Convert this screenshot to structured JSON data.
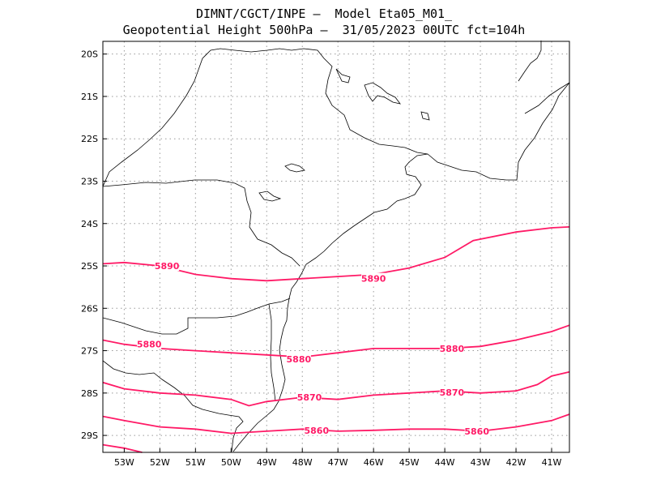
{
  "header": {
    "line1": "DIMNT/CGCT/INPE –  Model Eta05_M01_",
    "line2": "Geopotential Height 500hPa –  31/05/2023 00UTC fct=104h"
  },
  "colors": {
    "contour": "#ff1a66",
    "coast": "#000000",
    "grid": "#999999"
  },
  "map_data": {
    "type": "contour",
    "variable": "Geopotential Height 500hPa",
    "lon_range": [
      -53.6,
      -40.5
    ],
    "lat_range": [
      -29.4,
      -19.7
    ],
    "x_ticks": [
      "53W",
      "52W",
      "51W",
      "50W",
      "49W",
      "48W",
      "47W",
      "46W",
      "45W",
      "44W",
      "43W",
      "42W",
      "41W"
    ],
    "y_ticks": [
      "20S",
      "21S",
      "22S",
      "23S",
      "24S",
      "25S",
      "26S",
      "27S",
      "28S",
      "29S"
    ],
    "contours": [
      {
        "level": "5890",
        "points": [
          [
            -53.6,
            -24.95
          ],
          [
            -53,
            -24.92
          ],
          [
            -52,
            -25.0
          ],
          [
            -51,
            -25.2
          ],
          [
            -50,
            -25.3
          ],
          [
            -49,
            -25.35
          ],
          [
            -48,
            -25.3
          ],
          [
            -47,
            -25.25
          ],
          [
            -46,
            -25.2
          ],
          [
            -45,
            -25.05
          ],
          [
            -44,
            -24.8
          ],
          [
            -43.2,
            -24.4
          ],
          [
            -42,
            -24.2
          ],
          [
            -41,
            -24.1
          ],
          [
            -40.5,
            -24.08
          ]
        ],
        "labels": [
          [
            -51.8,
            -25.0
          ],
          [
            -46,
            -25.3
          ]
        ]
      },
      {
        "level": "5880",
        "points": [
          [
            -53.6,
            -26.75
          ],
          [
            -53,
            -26.85
          ],
          [
            -52,
            -26.95
          ],
          [
            -51,
            -27.0
          ],
          [
            -50,
            -27.05
          ],
          [
            -49,
            -27.1
          ],
          [
            -48,
            -27.15
          ],
          [
            -47,
            -27.05
          ],
          [
            -46,
            -26.95
          ],
          [
            -45,
            -26.95
          ],
          [
            -44,
            -26.95
          ],
          [
            -43,
            -26.9
          ],
          [
            -42,
            -26.75
          ],
          [
            -41,
            -26.55
          ],
          [
            -40.5,
            -26.4
          ]
        ],
        "labels": [
          [
            -52.3,
            -26.85
          ],
          [
            -48.1,
            -27.2
          ],
          [
            -43.8,
            -26.95
          ]
        ]
      },
      {
        "level": "5870",
        "points": [
          [
            -53.6,
            -27.75
          ],
          [
            -53,
            -27.9
          ],
          [
            -52,
            -28.0
          ],
          [
            -51,
            -28.05
          ],
          [
            -50,
            -28.15
          ],
          [
            -49.5,
            -28.3
          ],
          [
            -49,
            -28.2
          ],
          [
            -48,
            -28.1
          ],
          [
            -47,
            -28.15
          ],
          [
            -46,
            -28.05
          ],
          [
            -45,
            -28.0
          ],
          [
            -44,
            -27.95
          ],
          [
            -43,
            -28.0
          ],
          [
            -42,
            -27.95
          ],
          [
            -41.4,
            -27.8
          ],
          [
            -41,
            -27.6
          ],
          [
            -40.5,
            -27.5
          ]
        ],
        "labels": [
          [
            -47.8,
            -28.1
          ],
          [
            -43.8,
            -27.98
          ]
        ]
      },
      {
        "level": "5860",
        "points": [
          [
            -53.6,
            -28.55
          ],
          [
            -53,
            -28.65
          ],
          [
            -52,
            -28.8
          ],
          [
            -51,
            -28.85
          ],
          [
            -50,
            -28.95
          ],
          [
            -49,
            -28.9
          ],
          [
            -48,
            -28.85
          ],
          [
            -47,
            -28.9
          ],
          [
            -46,
            -28.88
          ],
          [
            -45,
            -28.85
          ],
          [
            -44,
            -28.85
          ],
          [
            -43,
            -28.9
          ],
          [
            -42,
            -28.8
          ],
          [
            -41,
            -28.65
          ],
          [
            -40.5,
            -28.5
          ]
        ],
        "labels": [
          [
            -47.6,
            -28.88
          ],
          [
            -43.1,
            -28.9
          ]
        ]
      },
      {
        "level": "",
        "points": [
          [
            -53.6,
            -29.22
          ],
          [
            -53,
            -29.3
          ],
          [
            -52.5,
            -29.4
          ]
        ],
        "labels": []
      }
    ]
  }
}
